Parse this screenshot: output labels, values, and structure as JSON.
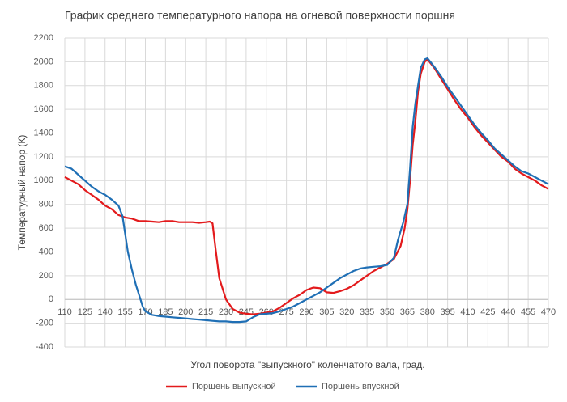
{
  "chart_data": {
    "type": "line",
    "title": "График среднего температурного напора на огневой поверхности поршня",
    "x_label": "Угол поворота \"выпускного\" коленчатого вала, град.",
    "y_label": "Температурный напор (К)",
    "xlim": [
      110,
      470
    ],
    "xticks": [
      110,
      125,
      140,
      155,
      170,
      185,
      200,
      215,
      230,
      245,
      260,
      275,
      290,
      305,
      320,
      335,
      350,
      365,
      380,
      395,
      410,
      425,
      440,
      455,
      470
    ],
    "ylim": [
      -400,
      2200
    ],
    "yticks": [
      -400,
      -200,
      0,
      200,
      400,
      600,
      800,
      1000,
      1200,
      1400,
      1600,
      1800,
      2000,
      2200
    ],
    "grid": true,
    "legend": "bottom",
    "series": [
      {
        "name": "Поршень выпускной",
        "color": "#e31a1c",
        "x": [
          110,
          115,
          120,
          125,
          130,
          135,
          140,
          145,
          150,
          155,
          160,
          165,
          170,
          175,
          180,
          185,
          190,
          195,
          200,
          205,
          210,
          215,
          218,
          220,
          222,
          225,
          230,
          235,
          240,
          245,
          250,
          255,
          260,
          265,
          270,
          275,
          280,
          285,
          290,
          295,
          300,
          305,
          310,
          315,
          320,
          325,
          330,
          335,
          340,
          345,
          350,
          355,
          360,
          363,
          365,
          367,
          369,
          371,
          373,
          375,
          378,
          380,
          385,
          390,
          395,
          400,
          405,
          410,
          415,
          420,
          425,
          430,
          435,
          440,
          445,
          450,
          455,
          460,
          465,
          470
        ],
        "values": [
          1030,
          1000,
          970,
          920,
          880,
          840,
          790,
          760,
          710,
          690,
          680,
          660,
          660,
          655,
          650,
          660,
          660,
          650,
          650,
          650,
          645,
          650,
          655,
          640,
          450,
          180,
          0,
          -80,
          -110,
          -120,
          -125,
          -120,
          -110,
          -100,
          -70,
          -30,
          10,
          40,
          80,
          100,
          95,
          60,
          55,
          70,
          90,
          120,
          160,
          200,
          240,
          270,
          300,
          340,
          450,
          600,
          750,
          1000,
          1300,
          1500,
          1750,
          1900,
          2000,
          2020,
          1950,
          1860,
          1770,
          1680,
          1600,
          1530,
          1450,
          1380,
          1320,
          1260,
          1200,
          1160,
          1100,
          1060,
          1030,
          1000,
          960,
          930
        ]
      },
      {
        "name": "Поршень впускной",
        "color": "#1f6fb5",
        "x": [
          110,
          115,
          120,
          125,
          130,
          135,
          140,
          145,
          150,
          153,
          155,
          157,
          160,
          163,
          165,
          168,
          170,
          175,
          180,
          185,
          190,
          195,
          200,
          205,
          210,
          215,
          220,
          225,
          230,
          235,
          240,
          245,
          250,
          255,
          260,
          265,
          270,
          275,
          280,
          285,
          290,
          295,
          300,
          305,
          310,
          315,
          320,
          325,
          330,
          335,
          340,
          345,
          350,
          355,
          358,
          362,
          365,
          367,
          369,
          371,
          373,
          375,
          378,
          380,
          385,
          390,
          395,
          400,
          405,
          410,
          415,
          420,
          425,
          430,
          435,
          440,
          445,
          450,
          455,
          460,
          465,
          470
        ],
        "values": [
          1120,
          1100,
          1050,
          1000,
          950,
          910,
          880,
          840,
          790,
          700,
          550,
          400,
          250,
          120,
          50,
          -60,
          -100,
          -130,
          -140,
          -145,
          -150,
          -155,
          -160,
          -165,
          -170,
          -175,
          -180,
          -185,
          -185,
          -190,
          -190,
          -185,
          -150,
          -125,
          -120,
          -115,
          -100,
          -80,
          -60,
          -30,
          0,
          30,
          60,
          100,
          140,
          180,
          210,
          240,
          260,
          270,
          275,
          280,
          290,
          350,
          500,
          650,
          800,
          1100,
          1450,
          1650,
          1800,
          1950,
          2020,
          2030,
          1960,
          1880,
          1790,
          1710,
          1630,
          1550,
          1470,
          1400,
          1340,
          1270,
          1220,
          1170,
          1120,
          1080,
          1060,
          1030,
          1000,
          970
        ]
      }
    ]
  }
}
